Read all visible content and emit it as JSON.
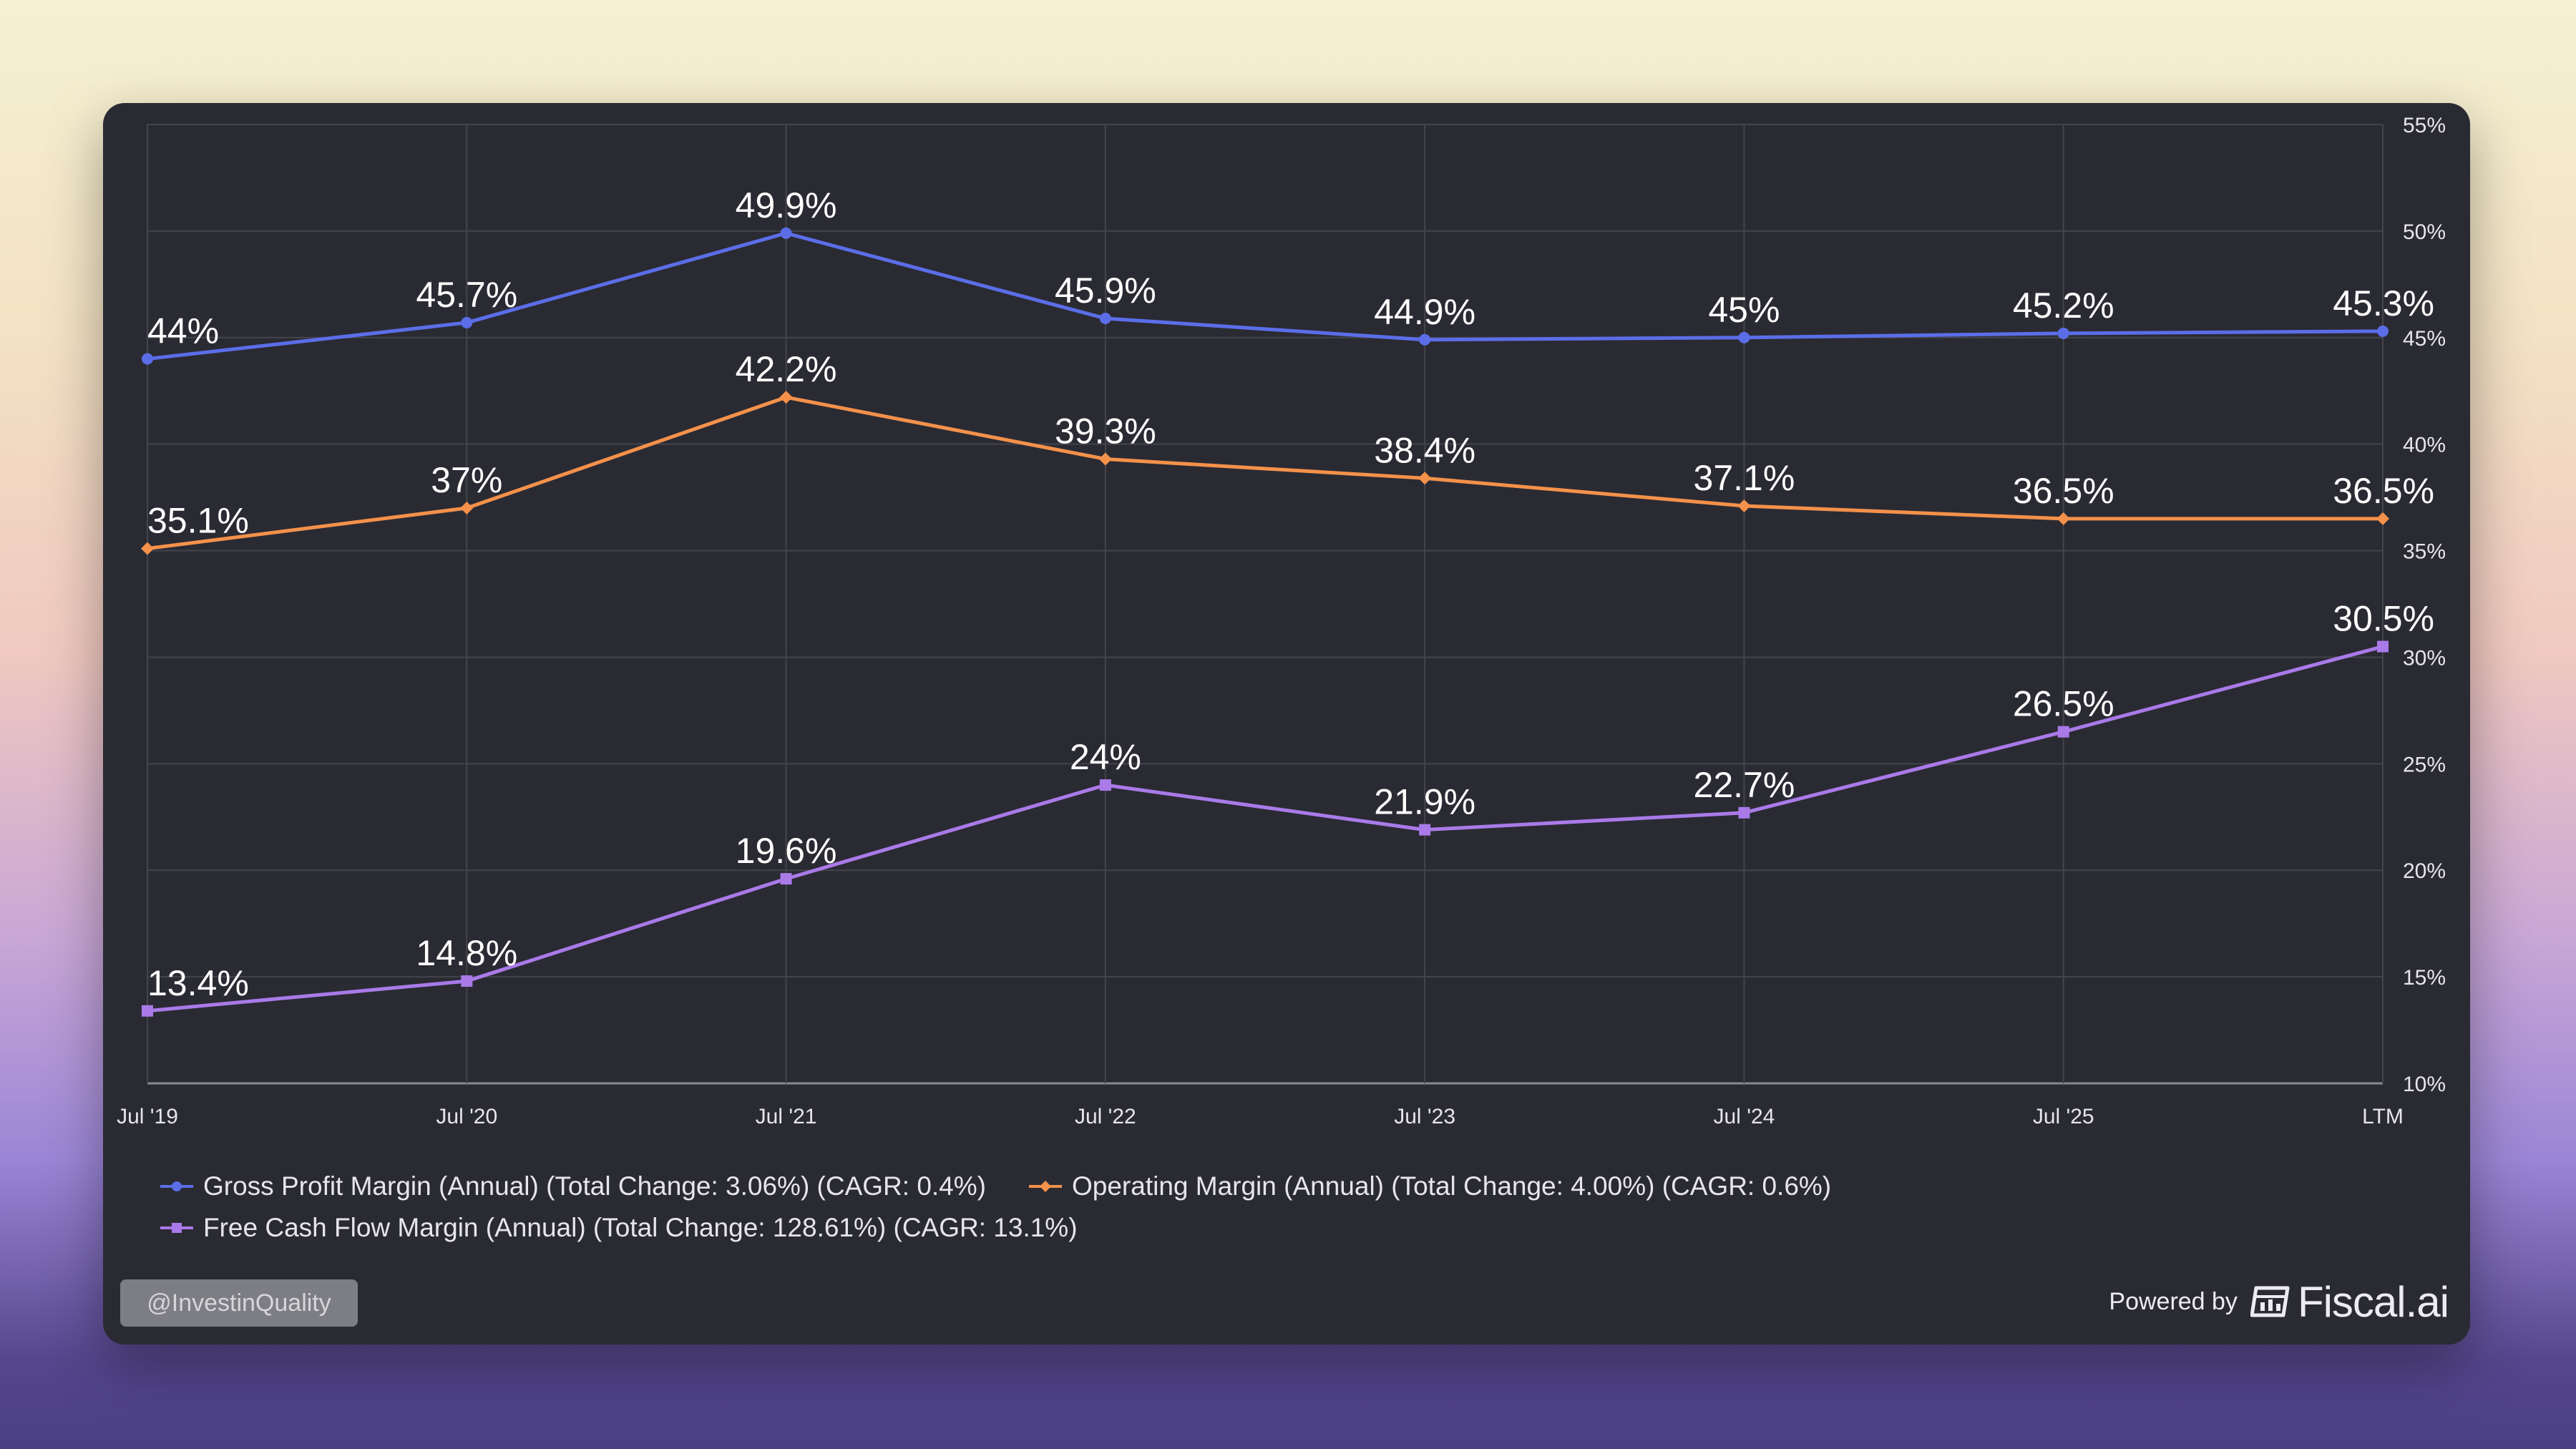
{
  "chart_data": {
    "type": "line",
    "title": "",
    "categories": [
      "Jul '19",
      "Jul '20",
      "Jul '21",
      "Jul '22",
      "Jul '23",
      "Jul '24",
      "Jul '25",
      "LTM"
    ],
    "ylim": [
      10,
      55
    ],
    "yticks": [
      "10%",
      "15%",
      "20%",
      "25%",
      "30%",
      "35%",
      "40%",
      "45%",
      "50%",
      "55%"
    ],
    "ytick_values": [
      10,
      15,
      20,
      25,
      30,
      35,
      40,
      45,
      50,
      55
    ],
    "grid": true,
    "y_axis_side": "right",
    "legend_position": "bottom-left",
    "series": [
      {
        "name": "Gross Profit Margin (Annual) (Total Change: 3.06%) (CAGR: 0.4%)",
        "color": "#5b6ee8",
        "marker": "circle",
        "values": [
          44.0,
          45.7,
          49.9,
          45.9,
          44.9,
          45.0,
          45.2,
          45.3
        ],
        "labels": [
          "44%",
          "45.7%",
          "49.9%",
          "45.9%",
          "44.9%",
          "45%",
          "45.2%",
          "45.3%"
        ]
      },
      {
        "name": "Operating Margin (Annual) (Total Change: 4.00%) (CAGR: 0.6%)",
        "color": "#f4914a",
        "marker": "diamond",
        "values": [
          35.1,
          37.0,
          42.2,
          39.3,
          38.4,
          37.1,
          36.5,
          36.5
        ],
        "labels": [
          "35.1%",
          "37%",
          "42.2%",
          "39.3%",
          "38.4%",
          "37.1%",
          "36.5%",
          "36.5%"
        ]
      },
      {
        "name": "Free Cash Flow Margin (Annual) (Total Change: 128.61%) (CAGR: 13.1%)",
        "color": "#a97ae8",
        "marker": "square",
        "values": [
          13.4,
          14.8,
          19.6,
          24.0,
          21.9,
          22.7,
          26.5,
          30.5
        ],
        "labels": [
          "13.4%",
          "14.8%",
          "19.6%",
          "24%",
          "21.9%",
          "22.7%",
          "26.5%",
          "30.5%"
        ]
      }
    ]
  },
  "footer": {
    "watermark": "@InvestinQuality",
    "powered_by": "Powered by",
    "brand": "Fiscal.ai",
    "brand_icon": "fiscal-logo-icon"
  },
  "colors": {
    "card_background": "#2a2a33",
    "grid": "#44444c",
    "axis_text": "#e6e6ea"
  }
}
